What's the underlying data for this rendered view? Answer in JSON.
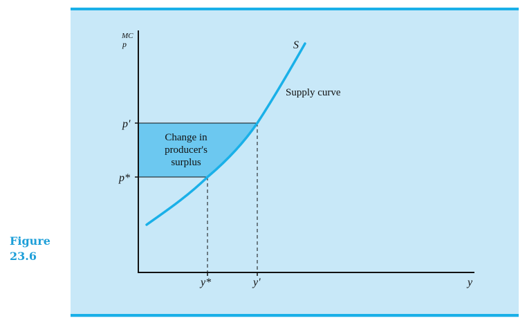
{
  "figure": {
    "label_line1": "Figure",
    "label_line2": "23.6"
  },
  "diagram": {
    "y_axis_label_top": "MC",
    "y_axis_label_bottom": "p",
    "x_axis_label": "y",
    "curve_label": "S",
    "curve_name": "Supply curve",
    "price_high": "p'",
    "price_low": "p*",
    "quantity_low": "y*",
    "quantity_high": "y'",
    "region_line1": "Change in",
    "region_line2": "producer's",
    "region_line3": "surplus",
    "colors": {
      "accent": "#1ab0e8",
      "panel_background": "#c8e8f8",
      "region_fill": "#6cc8f0",
      "figure_label": "#1e9fd8"
    }
  }
}
